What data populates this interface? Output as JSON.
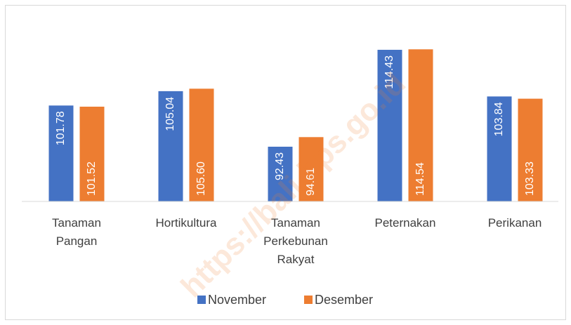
{
  "chart_data": {
    "type": "bar",
    "watermark": "https://bali.bps.go.id",
    "categories": [
      "Tanaman Pangan",
      "Hortikultura",
      "Tanaman Perkebunan Rakyat",
      "Peternakan",
      "Perikanan"
    ],
    "series": [
      {
        "name": "November",
        "color": "#4472c4",
        "values": [
          101.78,
          105.04,
          92.43,
          114.43,
          103.84
        ],
        "value_labels": [
          "101.78",
          "105.04",
          "92.43",
          "114.43",
          "103.84"
        ]
      },
      {
        "name": "Desember",
        "color": "#ed7d31",
        "values": [
          101.52,
          105.6,
          94.61,
          114.54,
          103.33
        ],
        "value_labels": [
          "101.52",
          "105.60",
          "94.61",
          "114.54",
          "103.33"
        ]
      }
    ],
    "ylim": [
      80,
      120
    ],
    "legend": "bottom"
  }
}
